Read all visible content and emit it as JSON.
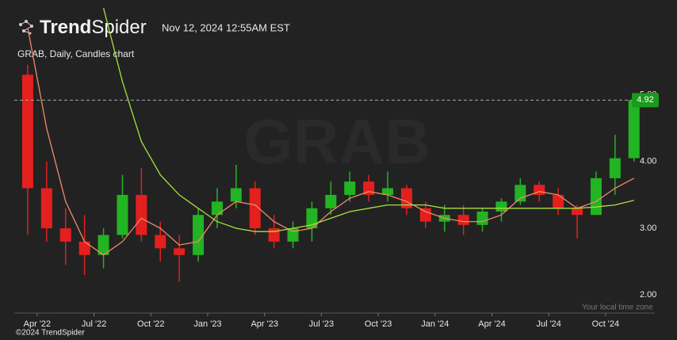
{
  "header": {
    "brand_bold": "Trend",
    "brand_light": "Spider",
    "timestamp": "Nov 12, 2024 12:55AM EST",
    "subtitle": "GRAB, Daily, Candles chart",
    "watermark": "GRAB"
  },
  "footer": {
    "copyright": "©2024 TrendSpider",
    "timezone": "Your local time zone"
  },
  "chart_data": {
    "type": "candlestick",
    "categories": [
      null,
      "Apr '22",
      null,
      null,
      "Jul '22",
      null,
      null,
      "Oct '22",
      null,
      null,
      "Jan '23",
      null,
      null,
      "Apr '23",
      null,
      null,
      "Jul '23",
      null,
      null,
      "Oct '23",
      null,
      null,
      "Jan '24",
      null,
      null,
      "Apr '24",
      null,
      null,
      "Jul '24",
      null,
      null,
      "Oct '24",
      null
    ],
    "open": [
      5.3,
      3.6,
      3.0,
      2.8,
      2.6,
      2.9,
      3.5,
      2.9,
      2.7,
      2.6,
      3.2,
      3.4,
      3.6,
      3.0,
      2.8,
      3.0,
      3.3,
      3.5,
      3.7,
      3.5,
      3.6,
      3.3,
      3.1,
      3.2,
      3.05,
      3.25,
      3.4,
      3.65,
      3.5,
      3.3,
      3.2,
      3.75,
      4.05
    ],
    "high": [
      5.45,
      4.0,
      3.3,
      3.2,
      3.0,
      3.8,
      3.9,
      3.1,
      2.9,
      3.3,
      3.6,
      3.95,
      3.7,
      3.2,
      3.1,
      3.4,
      3.7,
      3.85,
      3.8,
      3.85,
      3.65,
      3.4,
      3.35,
      3.35,
      3.3,
      3.45,
      3.75,
      3.7,
      3.6,
      3.35,
      3.85,
      4.4,
      4.92
    ],
    "low": [
      2.9,
      2.8,
      2.45,
      2.3,
      2.4,
      2.85,
      2.8,
      2.5,
      2.2,
      2.5,
      3.0,
      3.3,
      2.9,
      2.7,
      2.7,
      2.8,
      3.2,
      3.4,
      3.4,
      3.4,
      3.2,
      3.0,
      2.95,
      2.9,
      2.95,
      3.1,
      3.35,
      3.4,
      3.2,
      2.85,
      3.2,
      3.5,
      4.0
    ],
    "close": [
      3.6,
      3.0,
      2.8,
      2.6,
      2.9,
      3.5,
      2.9,
      2.7,
      2.6,
      3.2,
      3.4,
      3.6,
      3.0,
      2.8,
      3.0,
      3.3,
      3.5,
      3.7,
      3.5,
      3.6,
      3.3,
      3.1,
      3.2,
      3.05,
      3.25,
      3.4,
      3.65,
      3.5,
      3.3,
      3.2,
      3.75,
      4.05,
      4.92
    ],
    "up_color": "#22b422",
    "down_color": "#e3201e",
    "series": [
      {
        "color": "#f08a68",
        "values": [
          6.0,
          4.5,
          3.4,
          2.8,
          2.6,
          2.8,
          3.15,
          3.0,
          2.75,
          2.8,
          3.2,
          3.4,
          3.35,
          3.1,
          2.95,
          3.0,
          3.25,
          3.45,
          3.55,
          3.5,
          3.4,
          3.25,
          3.15,
          3.1,
          3.1,
          3.2,
          3.45,
          3.55,
          3.5,
          3.3,
          3.4,
          3.6,
          3.75
        ]
      },
      {
        "color": "#a8e040",
        "values": [
          null,
          null,
          null,
          null,
          6.3,
          5.2,
          4.3,
          3.8,
          3.5,
          3.3,
          3.1,
          3.0,
          2.95,
          2.95,
          3.0,
          3.05,
          3.15,
          3.25,
          3.3,
          3.35,
          3.35,
          3.35,
          3.3,
          3.3,
          3.3,
          3.3,
          3.3,
          3.3,
          3.3,
          3.3,
          3.32,
          3.35,
          3.42
        ]
      }
    ],
    "last_price": 4.92,
    "last_price_color": "#1a9a1a",
    "ylim": [
      1.73,
      6.42
    ],
    "yticks": [
      {
        "value": 2,
        "label": "2.00"
      },
      {
        "value": 3,
        "label": "3.00"
      },
      {
        "value": 4,
        "label": "4.00"
      },
      {
        "value": 5,
        "label": "5.00"
      }
    ]
  }
}
